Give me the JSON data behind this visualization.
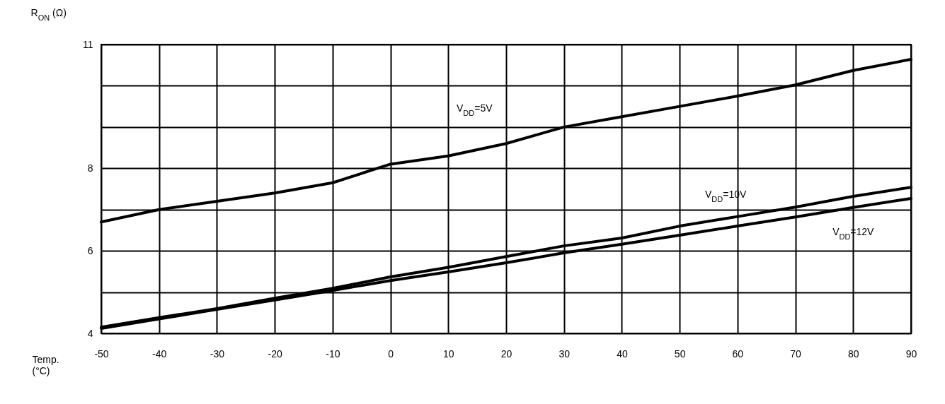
{
  "chart_data": {
    "type": "line",
    "xlabel": "Temp. (°C)",
    "ylabel": "R$_{ON}$ (Ω)",
    "x": [
      -50,
      -40,
      -30,
      -20,
      -10,
      0,
      10,
      20,
      30,
      40,
      50,
      60,
      70,
      80,
      90
    ],
    "series": [
      {
        "name": "V$_{DD}$=5V",
        "color": "#000000",
        "values": [
          6.7,
          7.0,
          7.2,
          7.4,
          7.65,
          8.1,
          8.3,
          8.6,
          9.0,
          9.25,
          9.5,
          9.75,
          10.02,
          10.37,
          10.64
        ]
      },
      {
        "name": "V$_{DD}$=10V",
        "color": "#000000",
        "values": [
          4.15,
          4.38,
          4.6,
          4.85,
          5.09,
          5.37,
          5.6,
          5.86,
          6.12,
          6.31,
          6.6,
          6.83,
          7.06,
          7.32,
          7.54
        ]
      },
      {
        "name": "V$_{DD}$=12V",
        "color": "#000000",
        "values": [
          4.12,
          4.35,
          4.58,
          4.81,
          5.04,
          5.28,
          5.49,
          5.71,
          5.95,
          6.16,
          6.38,
          6.6,
          6.82,
          7.05,
          7.27
        ]
      }
    ],
    "xlim": [
      -50,
      90
    ],
    "xticks": [
      -50,
      -40,
      -30,
      -20,
      -10,
      0,
      10,
      20,
      30,
      40,
      50,
      60,
      70,
      80,
      90
    ],
    "ylim": [
      4,
      11
    ],
    "yticks": [
      4,
      {
        "value": 5,
        "label": null
      },
      6,
      {
        "value": 7,
        "label": null
      },
      8,
      {
        "value": 9,
        "label": null
      },
      {
        "value": 10,
        "label": null
      },
      11
    ],
    "grid": true,
    "legend": false,
    "marker": "none",
    "line_style": "solid"
  }
}
